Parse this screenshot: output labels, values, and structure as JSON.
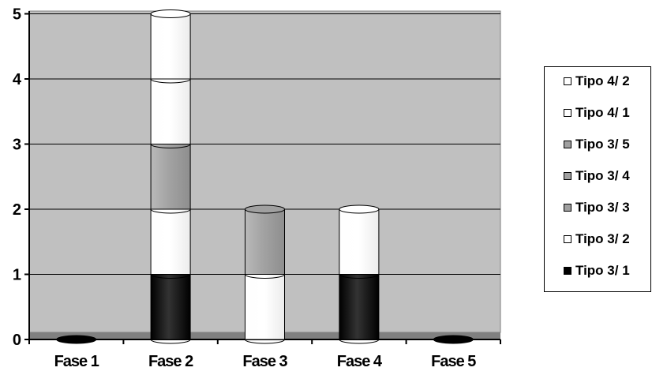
{
  "chart_data": {
    "type": "bar",
    "style": "stacked 3D cylinder",
    "categories": [
      "Fase 1",
      "Fase 2",
      "Fase 3",
      "Fase 4",
      "Fase 5"
    ],
    "series": [
      {
        "name": "Tipo 3/ 1",
        "color": "#000000",
        "values": [
          0,
          1,
          0,
          1,
          0
        ]
      },
      {
        "name": "Tipo 3/ 2",
        "color": "#ffffff",
        "values": [
          0,
          1,
          1,
          0,
          0
        ]
      },
      {
        "name": "Tipo 3/ 3",
        "color": "#a0a0a0",
        "values": [
          0,
          1,
          0,
          0,
          0
        ]
      },
      {
        "name": "Tipo 3/ 4",
        "color": "#a0a0a0",
        "values": [
          0,
          0,
          0,
          0,
          0
        ]
      },
      {
        "name": "Tipo 3/ 5",
        "color": "#a0a0a0",
        "values": [
          0,
          0,
          1,
          0,
          0
        ]
      },
      {
        "name": "Tipo 4/ 1",
        "color": "#ffffff",
        "values": [
          0,
          1,
          0,
          1,
          0
        ]
      },
      {
        "name": "Tipo 4/ 2",
        "color": "#ffffff",
        "values": [
          0,
          1,
          0,
          0,
          0
        ]
      }
    ],
    "ylim": [
      0,
      5
    ],
    "yticks": [
      "0",
      "1",
      "2",
      "3",
      "4",
      "5"
    ],
    "grid": true,
    "plot_background": "#c0c0c0",
    "legend_position": "right"
  }
}
